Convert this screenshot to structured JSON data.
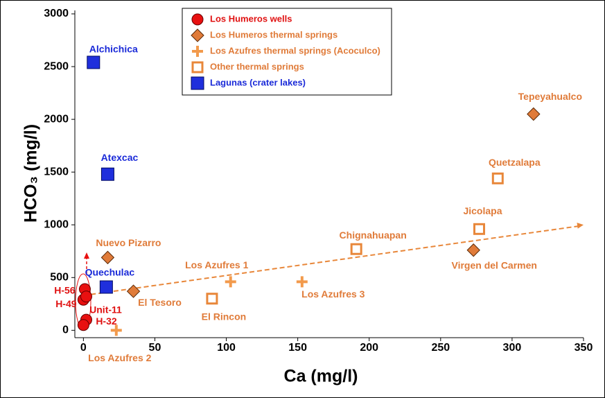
{
  "chart_data": {
    "type": "scatter",
    "x_label": "Ca (mg/l)",
    "y_label": "HCO₃ (mg/l)",
    "xlim": [
      -6,
      350
    ],
    "ylim": [
      -70,
      3000
    ],
    "xticks": [
      0,
      50,
      100,
      150,
      200,
      250,
      300,
      350
    ],
    "yticks": [
      0,
      500,
      1000,
      1500,
      2000,
      2500,
      3000
    ],
    "legend": "top",
    "series": [
      {
        "name": "Los Humeros wells",
        "color": "#e81010",
        "label_color": "#e01010",
        "marker": "circle",
        "x": [
          1,
          0,
          2,
          2,
          0
        ],
        "values": [
          390,
          290,
          320,
          100,
          50
        ],
        "labels": [
          "H-56",
          "H-49",
          "Unit-11",
          "H-32",
          null
        ]
      },
      {
        "name": "Los Humeros thermal springs",
        "color": "#e07b39",
        "label_color": "#e07b39",
        "marker": "diamond",
        "x": [
          17,
          35,
          315,
          273
        ],
        "values": [
          690,
          370,
          2050,
          760
        ],
        "labels": [
          "Nuevo Pizarro",
          "El Tesoro",
          "Tepeyahualco",
          "Virgen del Carmen"
        ]
      },
      {
        "name": "Los Azufres thermal springs (Acoculco)",
        "color": "#f29a4c",
        "label_color": "#e07b39",
        "marker": "plus",
        "x": [
          103,
          153,
          23
        ],
        "values": [
          460,
          460,
          0
        ],
        "labels": [
          "Los Azufres 1",
          "Los Azufres 3",
          "Los Azufres 2"
        ]
      },
      {
        "name": "Other thermal springs",
        "color": "#e8873a",
        "label_color": "#e07b39",
        "marker": "hollow-square",
        "x": [
          90,
          191,
          277,
          290
        ],
        "values": [
          300,
          770,
          960,
          1440
        ],
        "labels": [
          "El Rincon",
          "Chignahuapan",
          "Jicolapa",
          "Quetzalapa"
        ]
      },
      {
        "name": "Lagunas (crater lakes)",
        "color": "#1f2fdc",
        "label_color": "#1a2ad8",
        "marker": "square",
        "x": [
          7,
          17,
          16
        ],
        "values": [
          2540,
          1480,
          410
        ],
        "labels": [
          "Alchichica",
          "Atexcac",
          "Quechulac"
        ]
      }
    ],
    "trend": {
      "color": "#e8873a",
      "x": [
        0,
        350
      ],
      "values": [
        330,
        1000
      ]
    }
  }
}
